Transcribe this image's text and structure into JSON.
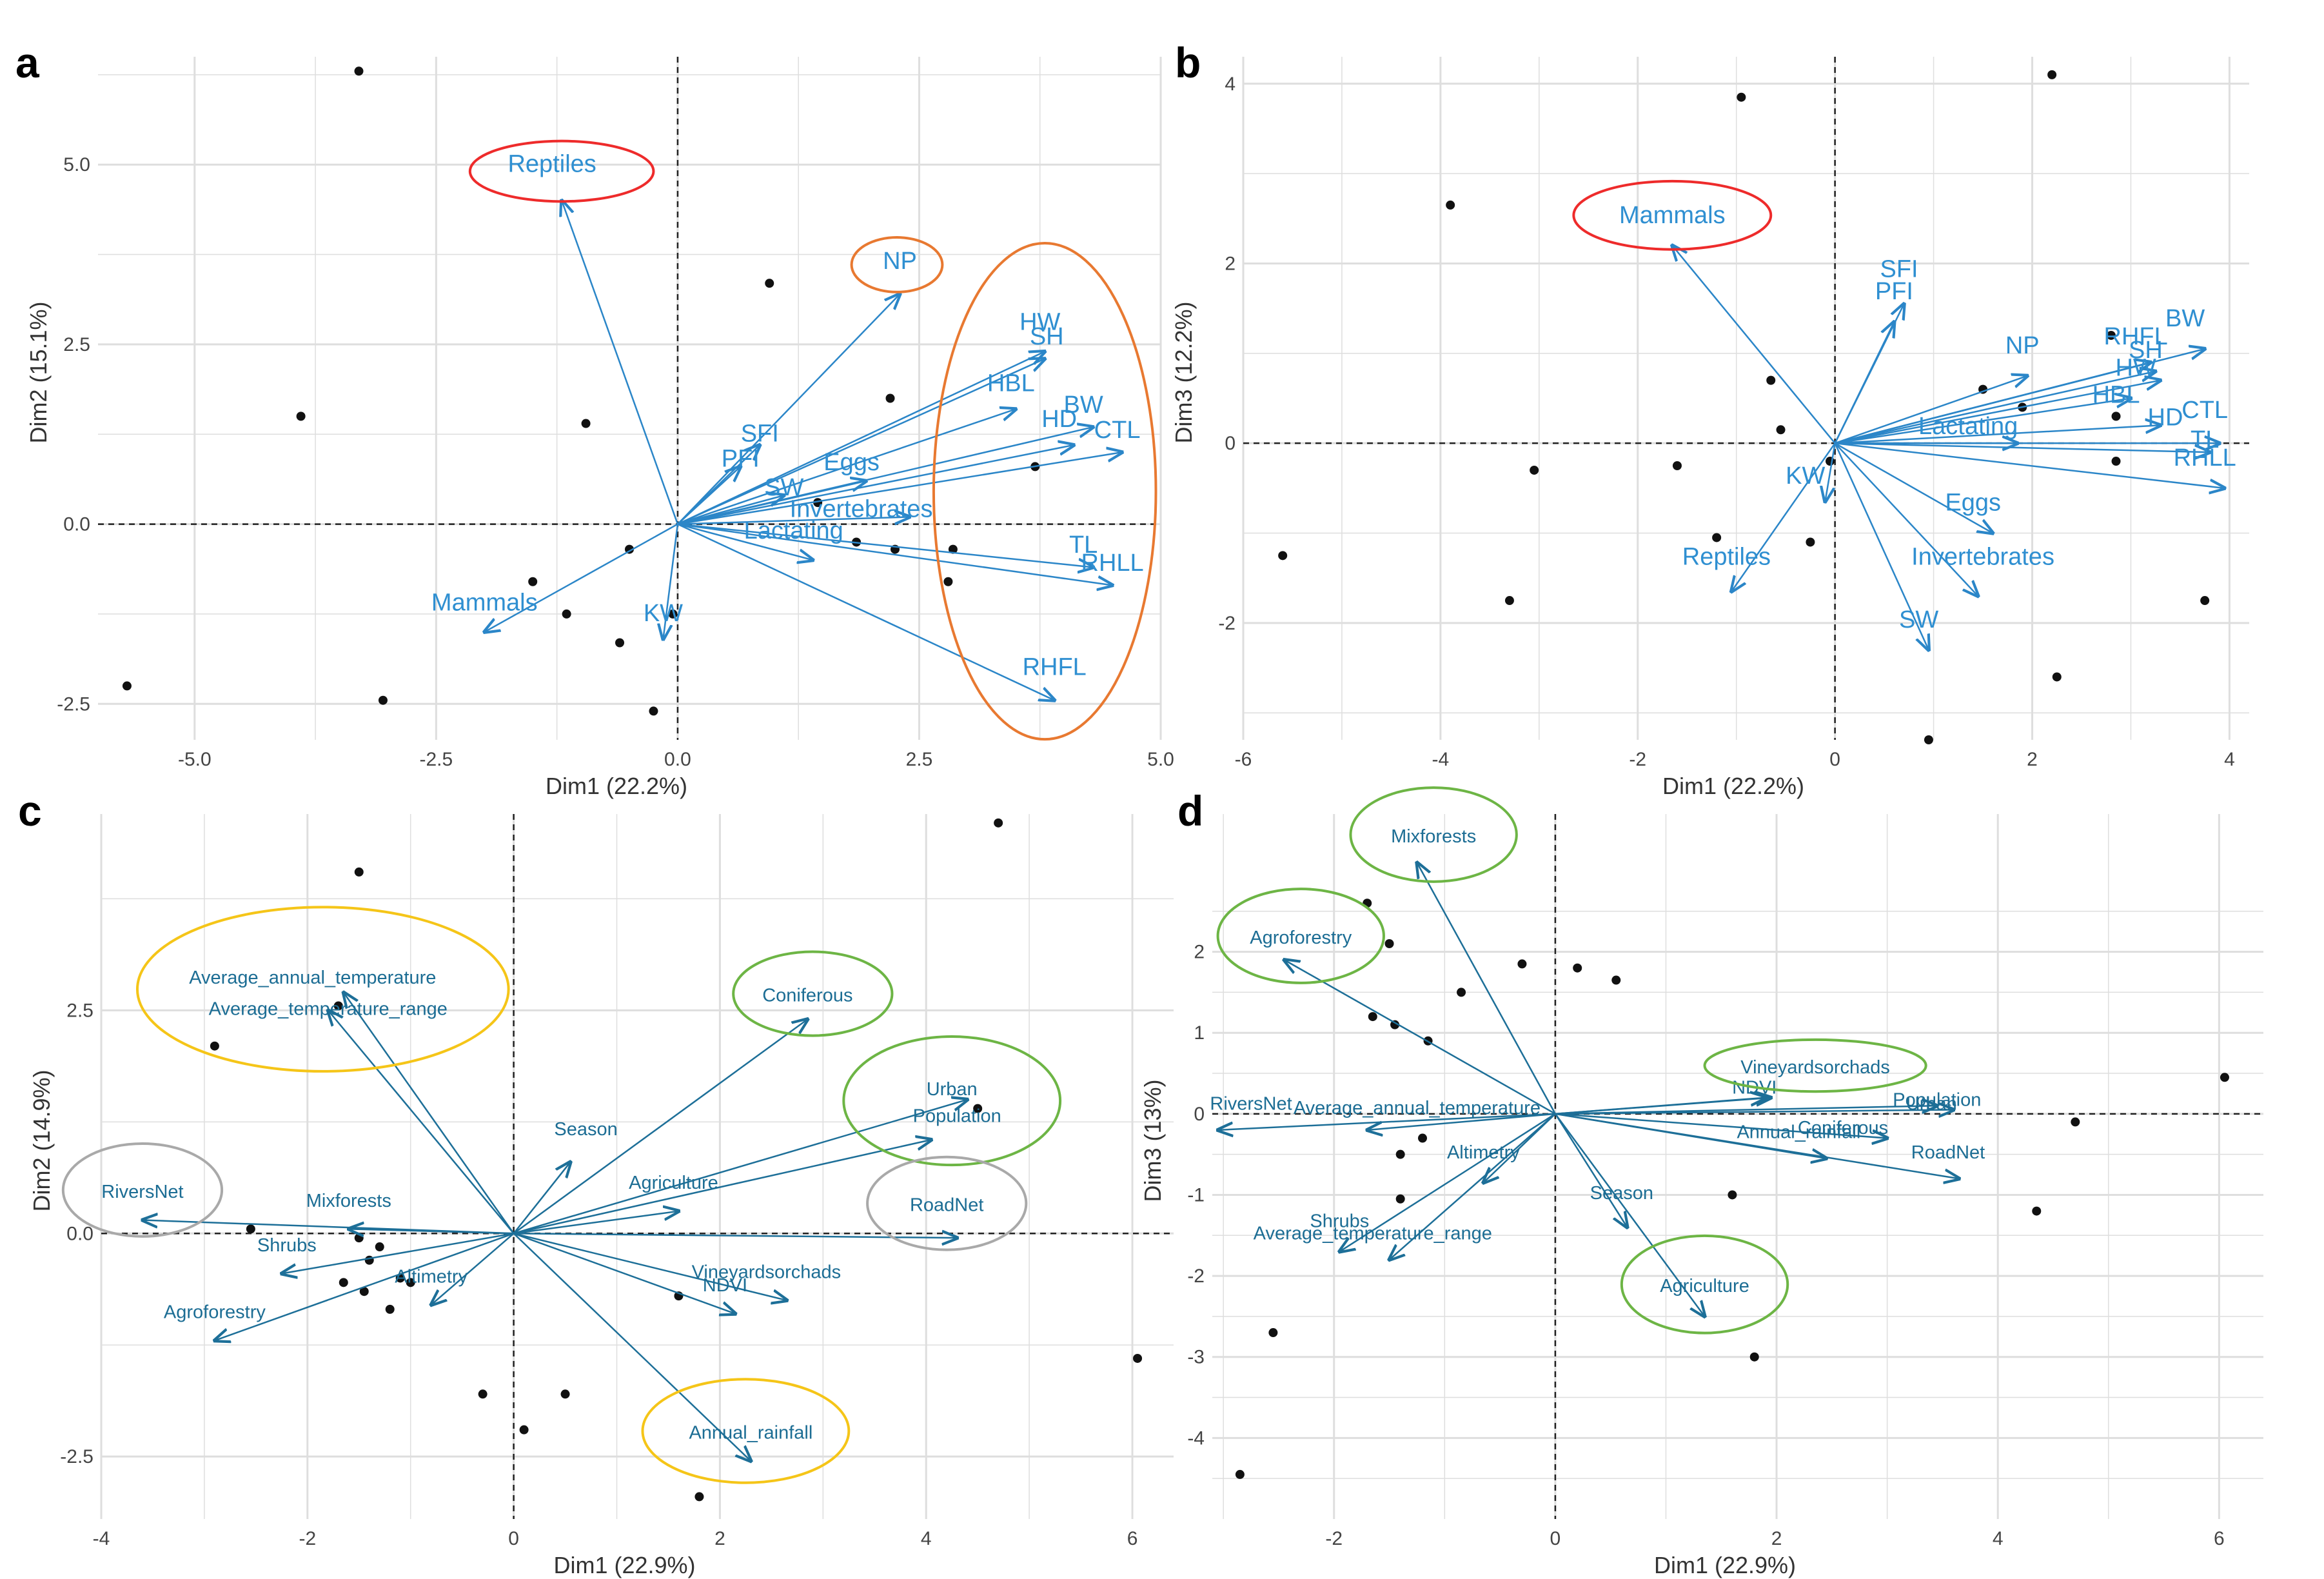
{
  "figure_title": "",
  "colors": {
    "arrow_ab": "#2b86c8",
    "arrow_cd": "#1d6f98",
    "label_ab": "#2f8fd1",
    "label_cd": "#1c6d94",
    "grid": "#dedede",
    "point": "#111111",
    "red_ellipse": "#ee2b2b",
    "orange_ellipse": "#e87931",
    "green_ellipse": "#6db545",
    "yellow_ellipse": "#f5c518",
    "gray_ellipse": "#a9a9a9"
  },
  "chart_data": [
    {
      "panel": "a",
      "type": "scatter",
      "subtype": "pca-biplot",
      "xlabel": "Dim1 (22.2%)",
      "ylabel": "Dim2 (15.1%)",
      "xlim": [
        -6.0,
        5.0
      ],
      "ylim": [
        -3.0,
        6.5
      ],
      "xticks": [
        -5.0,
        -2.5,
        0.0,
        2.5,
        5.0
      ],
      "xtick_labels": [
        "-5.0",
        "-2.5",
        "0.0",
        "2.5",
        "5.0"
      ],
      "yticks": [
        -2.5,
        0.0,
        2.5,
        5.0
      ],
      "ytick_labels": [
        "-2.5",
        "0.0",
        "2.5",
        "5.0"
      ],
      "grid": true,
      "points": [
        {
          "x": -3.3,
          "y": 6.3
        },
        {
          "x": -3.9,
          "y": 1.5
        },
        {
          "x": -5.7,
          "y": -2.25
        },
        {
          "x": -3.05,
          "y": -2.45
        },
        {
          "x": -1.5,
          "y": -0.8
        },
        {
          "x": -1.15,
          "y": -1.25
        },
        {
          "x": -0.95,
          "y": 1.4
        },
        {
          "x": -0.6,
          "y": -1.65
        },
        {
          "x": -0.5,
          "y": -0.35
        },
        {
          "x": -0.25,
          "y": -2.6
        },
        {
          "x": -0.05,
          "y": -1.25
        },
        {
          "x": 0.95,
          "y": 3.35
        },
        {
          "x": 1.45,
          "y": 0.3
        },
        {
          "x": 1.85,
          "y": -0.25
        },
        {
          "x": 2.2,
          "y": 1.75
        },
        {
          "x": 2.25,
          "y": -0.35
        },
        {
          "x": 2.8,
          "y": -0.8
        },
        {
          "x": 2.85,
          "y": -0.35
        },
        {
          "x": 3.7,
          "y": 0.8
        }
      ],
      "vectors": [
        {
          "label": "Reptiles",
          "x": -1.2,
          "y": 4.5,
          "lx": -1.3,
          "ly": 4.9
        },
        {
          "label": "NP",
          "x": 2.3,
          "y": 3.2,
          "lx": 2.3,
          "ly": 3.55
        },
        {
          "label": "HW",
          "x": 3.8,
          "y": 2.4,
          "lx": 3.75,
          "ly": 2.7
        },
        {
          "label": "SH",
          "x": 3.8,
          "y": 2.3,
          "lx": 3.82,
          "ly": 2.5
        },
        {
          "label": "HBL",
          "x": 3.5,
          "y": 1.6,
          "lx": 3.45,
          "ly": 1.85
        },
        {
          "label": "BW",
          "x": 4.3,
          "y": 1.35,
          "lx": 4.2,
          "ly": 1.55
        },
        {
          "label": "HD",
          "x": 4.1,
          "y": 1.1,
          "lx": 3.95,
          "ly": 1.35
        },
        {
          "label": "CTL",
          "x": 4.6,
          "y": 1.0,
          "lx": 4.55,
          "ly": 1.2
        },
        {
          "label": "SFI",
          "x": 0.85,
          "y": 1.1,
          "lx": 0.85,
          "ly": 1.15
        },
        {
          "label": "PFI",
          "x": 0.65,
          "y": 0.8,
          "lx": 0.65,
          "ly": 0.8
        },
        {
          "label": "Eggs",
          "x": 1.95,
          "y": 0.6,
          "lx": 1.8,
          "ly": 0.75
        },
        {
          "label": "SW",
          "x": 1.1,
          "y": 0.4,
          "lx": 1.1,
          "ly": 0.4
        },
        {
          "label": "Invertebrates",
          "x": 2.4,
          "y": 0.1,
          "lx": 1.9,
          "ly": 0.1
        },
        {
          "label": "Lactating",
          "x": 1.4,
          "y": -0.5,
          "lx": 1.2,
          "ly": -0.2
        },
        {
          "label": "TL",
          "x": 4.3,
          "y": -0.6,
          "lx": 4.2,
          "ly": -0.4
        },
        {
          "label": "RHLL",
          "x": 4.5,
          "y": -0.85,
          "lx": 4.5,
          "ly": -0.65
        },
        {
          "label": "RHFL",
          "x": 3.9,
          "y": -2.45,
          "lx": 3.9,
          "ly": -2.1
        },
        {
          "label": "Mammals",
          "x": -2.0,
          "y": -1.5,
          "lx": -2.0,
          "ly": -1.2
        },
        {
          "label": "KW",
          "x": -0.15,
          "y": -1.6,
          "lx": -0.15,
          "ly": -1.35
        }
      ],
      "ellipses": [
        {
          "color": "red",
          "cx": -1.2,
          "cy": 4.8,
          "rx": 0.95,
          "ry": 0.42
        },
        {
          "color": "orange",
          "cx": 2.27,
          "cy": 3.5,
          "rx": 0.47,
          "ry": 0.38
        },
        {
          "color": "orange",
          "cx": 3.8,
          "cy": 0.35,
          "rx": 1.15,
          "ry": 3.45
        }
      ]
    },
    {
      "panel": "b",
      "type": "scatter",
      "subtype": "pca-biplot",
      "xlabel": "Dim1 (22.2%)",
      "ylabel": "Dim3 (12.2%)",
      "xlim": [
        -6.0,
        4.2
      ],
      "ylim": [
        -3.3,
        4.3
      ],
      "xticks": [
        -6,
        -4,
        -2,
        0,
        2,
        4
      ],
      "xtick_labels": [
        "-6",
        "-4",
        "-2",
        "0",
        "2",
        "4"
      ],
      "yticks": [
        -2,
        0,
        2,
        4
      ],
      "ytick_labels": [
        "-2",
        "0",
        "2",
        "4"
      ],
      "grid": true,
      "points": [
        {
          "x": -0.95,
          "y": 3.85
        },
        {
          "x": -3.9,
          "y": 2.65
        },
        {
          "x": -5.6,
          "y": -1.25
        },
        {
          "x": -3.3,
          "y": -1.75
        },
        {
          "x": -3.05,
          "y": -0.3
        },
        {
          "x": -1.6,
          "y": -0.25
        },
        {
          "x": -1.2,
          "y": -1.05
        },
        {
          "x": -0.65,
          "y": 0.7
        },
        {
          "x": -0.55,
          "y": 0.15
        },
        {
          "x": -0.25,
          "y": -1.1
        },
        {
          "x": -0.05,
          "y": -0.2
        },
        {
          "x": 0.95,
          "y": -3.3
        },
        {
          "x": 1.5,
          "y": 0.6
        },
        {
          "x": 1.9,
          "y": 0.4
        },
        {
          "x": 2.2,
          "y": 4.1
        },
        {
          "x": 2.25,
          "y": -2.6
        },
        {
          "x": 2.8,
          "y": 1.2
        },
        {
          "x": 2.85,
          "y": 0.3
        },
        {
          "x": 2.85,
          "y": -0.2
        },
        {
          "x": 3.75,
          "y": -1.75
        }
      ],
      "vectors": [
        {
          "label": "Mammals",
          "x": -1.65,
          "y": 2.2,
          "lx": -1.65,
          "ly": 2.45
        },
        {
          "label": "SFI",
          "x": 0.7,
          "y": 1.55,
          "lx": 0.65,
          "ly": 1.85
        },
        {
          "label": "PFI",
          "x": 0.6,
          "y": 1.35,
          "lx": 0.6,
          "ly": 1.6
        },
        {
          "label": "NP",
          "x": 1.95,
          "y": 0.75,
          "lx": 1.9,
          "ly": 1.0
        },
        {
          "label": "RHFL",
          "x": 3.2,
          "y": 0.9,
          "lx": 3.05,
          "ly": 1.1
        },
        {
          "label": "BW",
          "x": 3.75,
          "y": 1.05,
          "lx": 3.55,
          "ly": 1.3
        },
        {
          "label": "SH",
          "x": 3.25,
          "y": 0.8,
          "lx": 3.15,
          "ly": 0.95
        },
        {
          "label": "HW",
          "x": 3.3,
          "y": 0.7,
          "lx": 3.05,
          "ly": 0.75
        },
        {
          "label": "HBL",
          "x": 3.0,
          "y": 0.5,
          "lx": 2.85,
          "ly": 0.45
        },
        {
          "label": "HD",
          "x": 3.3,
          "y": 0.2,
          "lx": 3.35,
          "ly": 0.2
        },
        {
          "label": "CTL",
          "x": 3.9,
          "y": 0.0,
          "lx": 3.75,
          "ly": 0.28
        },
        {
          "label": "TL",
          "x": 3.8,
          "y": -0.1,
          "lx": 3.75,
          "ly": -0.05
        },
        {
          "label": "RHLL",
          "x": 3.95,
          "y": -0.5,
          "lx": 3.75,
          "ly": -0.25
        },
        {
          "label": "Lactating",
          "x": 1.85,
          "y": 0.0,
          "lx": 1.35,
          "ly": 0.1
        },
        {
          "label": "Eggs",
          "x": 1.6,
          "y": -1.0,
          "lx": 1.4,
          "ly": -0.75
        },
        {
          "label": "Invertebrates",
          "x": 1.45,
          "y": -1.7,
          "lx": 1.5,
          "ly": -1.35
        },
        {
          "label": "SW",
          "x": 0.95,
          "y": -2.3,
          "lx": 0.85,
          "ly": -2.05
        },
        {
          "label": "Reptiles",
          "x": -1.05,
          "y": -1.65,
          "lx": -1.1,
          "ly": -1.35
        },
        {
          "label": "KW",
          "x": -0.1,
          "y": -0.65,
          "lx": -0.3,
          "ly": -0.45
        }
      ],
      "ellipses": [
        {
          "color": "red",
          "cx": -1.65,
          "cy": 2.45,
          "rx": 1.0,
          "ry": 0.38
        }
      ]
    },
    {
      "panel": "c",
      "type": "scatter",
      "subtype": "pca-biplot",
      "xlabel": "Dim1 (22.9%)",
      "ylabel": "Dim2 (14.9%)",
      "xlim": [
        -4.0,
        6.4
      ],
      "ylim": [
        -3.2,
        4.7
      ],
      "xticks": [
        -4,
        -2,
        0,
        2,
        4,
        6
      ],
      "xtick_labels": [
        "-4",
        "-2",
        "0",
        "2",
        "4",
        "6"
      ],
      "yticks": [
        -2.5,
        0.0,
        2.5
      ],
      "ytick_labels": [
        "-2.5",
        "0.0",
        "2.5"
      ],
      "grid": true,
      "points": [
        {
          "x": -1.5,
          "y": 4.05
        },
        {
          "x": -1.7,
          "y": 2.55
        },
        {
          "x": -2.9,
          "y": 2.1
        },
        {
          "x": -2.55,
          "y": 0.05
        },
        {
          "x": -1.5,
          "y": -0.05
        },
        {
          "x": -1.3,
          "y": -0.15
        },
        {
          "x": -1.4,
          "y": -0.3
        },
        {
          "x": -1.1,
          "y": -0.5
        },
        {
          "x": -1.0,
          "y": -0.55
        },
        {
          "x": -1.65,
          "y": -0.55
        },
        {
          "x": -1.45,
          "y": -0.65
        },
        {
          "x": -1.2,
          "y": -0.85
        },
        {
          "x": -0.3,
          "y": -1.8
        },
        {
          "x": 0.1,
          "y": -2.2
        },
        {
          "x": 0.5,
          "y": -1.8
        },
        {
          "x": 1.6,
          "y": -0.7
        },
        {
          "x": 1.8,
          "y": -2.95
        },
        {
          "x": 4.5,
          "y": 1.4
        },
        {
          "x": 4.7,
          "y": 4.6
        },
        {
          "x": 6.05,
          "y": -1.4
        }
      ],
      "vectors": [
        {
          "label": "Average_annual_temperature",
          "x": -1.65,
          "y": 2.7,
          "lx": -1.95,
          "ly": 2.8
        },
        {
          "label": "Average_temperature_range",
          "x": -1.8,
          "y": 2.5,
          "lx": -1.8,
          "ly": 2.45
        },
        {
          "label": "Coniferous",
          "x": 2.85,
          "y": 2.4,
          "lx": 2.85,
          "ly": 2.6
        },
        {
          "label": "Urban",
          "x": 4.4,
          "y": 1.5,
          "lx": 4.25,
          "ly": 1.55
        },
        {
          "label": "Population",
          "x": 4.05,
          "y": 1.05,
          "lx": 4.3,
          "ly": 1.25
        },
        {
          "label": "Season",
          "x": 0.55,
          "y": 0.8,
          "lx": 0.7,
          "ly": 1.1
        },
        {
          "label": "Agriculture",
          "x": 1.6,
          "y": 0.25,
          "lx": 1.55,
          "ly": 0.5
        },
        {
          "label": "RoadNet",
          "x": 4.3,
          "y": -0.05,
          "lx": 4.2,
          "ly": 0.25
        },
        {
          "label": "Vineyardsorchads",
          "x": 2.65,
          "y": -0.75,
          "lx": 2.45,
          "ly": -0.5
        },
        {
          "label": "NDVI",
          "x": 2.15,
          "y": -0.9,
          "lx": 2.05,
          "ly": -0.65
        },
        {
          "label": "Annual_rainfall",
          "x": 2.3,
          "y": -2.55,
          "lx": 2.3,
          "ly": -2.3
        },
        {
          "label": "RiversNet",
          "x": -3.6,
          "y": 0.15,
          "lx": -3.6,
          "ly": 0.4
        },
        {
          "label": "Mixforests",
          "x": -1.6,
          "y": 0.05,
          "lx": -1.6,
          "ly": 0.3
        },
        {
          "label": "Shrubs",
          "x": -2.25,
          "y": -0.45,
          "lx": -2.2,
          "ly": -0.2
        },
        {
          "label": "Altimetry",
          "x": -0.8,
          "y": -0.8,
          "lx": -0.8,
          "ly": -0.55
        },
        {
          "label": "Agroforestry",
          "x": -2.9,
          "y": -1.2,
          "lx": -2.9,
          "ly": -0.95
        }
      ],
      "ellipses": [
        {
          "color": "yellow",
          "cx": -1.85,
          "cy": 2.65,
          "rx": 1.8,
          "ry": 0.92
        },
        {
          "color": "green",
          "cx": 2.9,
          "cy": 2.6,
          "rx": 0.77,
          "ry": 0.47
        },
        {
          "color": "green",
          "cx": 4.25,
          "cy": 1.4,
          "rx": 1.05,
          "ry": 0.72
        },
        {
          "color": "gray",
          "cx": 4.2,
          "cy": 0.25,
          "rx": 0.77,
          "ry": 0.52
        },
        {
          "color": "gray",
          "cx": -3.6,
          "cy": 0.4,
          "rx": 0.77,
          "ry": 0.52
        },
        {
          "color": "yellow",
          "cx": 2.25,
          "cy": -2.3,
          "rx": 1.0,
          "ry": 0.58
        }
      ]
    },
    {
      "panel": "d",
      "type": "scatter",
      "subtype": "pca-biplot",
      "xlabel": "Dim1 (22.9%)",
      "ylabel": "Dim3 (13%)",
      "xlim": [
        -3.1,
        6.4
      ],
      "ylim": [
        -5.0,
        3.7
      ],
      "xticks": [
        -2,
        0,
        2,
        4,
        6
      ],
      "xtick_labels": [
        "-2",
        "0",
        "2",
        "4",
        "6"
      ],
      "yticks": [
        -4,
        -3,
        -2,
        -1,
        0,
        1,
        2
      ],
      "ytick_labels": [
        "-4",
        "-3",
        "-2",
        "-1",
        "0",
        "1",
        "2"
      ],
      "grid": true,
      "points": [
        {
          "x": -1.7,
          "y": 2.6
        },
        {
          "x": -1.5,
          "y": 2.1
        },
        {
          "x": -0.3,
          "y": 1.85
        },
        {
          "x": 0.2,
          "y": 1.8
        },
        {
          "x": 0.55,
          "y": 1.65
        },
        {
          "x": -0.85,
          "y": 1.5
        },
        {
          "x": -1.65,
          "y": 1.2
        },
        {
          "x": -1.45,
          "y": 1.1
        },
        {
          "x": -1.15,
          "y": 0.9
        },
        {
          "x": -1.2,
          "y": -0.3
        },
        {
          "x": -1.4,
          "y": -0.5
        },
        {
          "x": -1.4,
          "y": -1.05
        },
        {
          "x": -2.55,
          "y": -2.7
        },
        {
          "x": -2.85,
          "y": -4.45
        },
        {
          "x": 1.6,
          "y": -1.0
        },
        {
          "x": 1.8,
          "y": -3.0
        },
        {
          "x": 4.7,
          "y": -0.1
        },
        {
          "x": 4.35,
          "y": -1.2
        },
        {
          "x": 6.05,
          "y": 0.45
        }
      ],
      "vectors": [
        {
          "label": "Mixforests",
          "x": -1.25,
          "y": 3.1,
          "lx": -1.1,
          "ly": 3.35
        },
        {
          "label": "Agroforestry",
          "x": -2.45,
          "y": 1.9,
          "lx": -2.3,
          "ly": 2.1
        },
        {
          "label": "Vineyardsorchads",
          "x": 1.9,
          "y": 0.2,
          "lx": 2.35,
          "ly": 0.5
        },
        {
          "label": "NDVI",
          "x": 1.95,
          "y": 0.2,
          "lx": 1.8,
          "ly": 0.25
        },
        {
          "label": "Population",
          "x": 3.45,
          "y": 0.1,
          "lx": 3.45,
          "ly": 0.1
        },
        {
          "label": "Urban",
          "x": 3.6,
          "y": 0.05,
          "lx": 3.4,
          "ly": 0.05
        },
        {
          "label": "Coniferous",
          "x": 3.0,
          "y": -0.3,
          "lx": 2.6,
          "ly": -0.25
        },
        {
          "label": "Annual_rainfall",
          "x": 2.45,
          "y": -0.55,
          "lx": 2.2,
          "ly": -0.3
        },
        {
          "label": "RoadNet",
          "x": 3.65,
          "y": -0.8,
          "lx": 3.55,
          "ly": -0.55
        },
        {
          "label": "Season",
          "x": 0.65,
          "y": -1.4,
          "lx": 0.6,
          "ly": -1.05
        },
        {
          "label": "Agriculture",
          "x": 1.35,
          "y": -2.5,
          "lx": 1.35,
          "ly": -2.2
        },
        {
          "label": "RiversNet",
          "x": -3.05,
          "y": -0.2,
          "lx": -2.75,
          "ly": 0.05
        },
        {
          "label": "Average_annual_temperature",
          "x": -1.7,
          "y": -0.2,
          "lx": -1.25,
          "ly": 0.0
        },
        {
          "label": "Altimetry",
          "x": -0.65,
          "y": -0.85,
          "lx": -0.65,
          "ly": -0.55
        },
        {
          "label": "Shrubs",
          "x": -1.95,
          "y": -1.7,
          "lx": -1.95,
          "ly": -1.4
        },
        {
          "label": "Average_temperature_range",
          "x": -1.5,
          "y": -1.8,
          "lx": -1.65,
          "ly": -1.55
        }
      ],
      "ellipses": [
        {
          "color": "green",
          "cx": -1.1,
          "cy": 3.35,
          "rx": 0.75,
          "ry": 0.58
        },
        {
          "color": "green",
          "cx": -2.3,
          "cy": 2.1,
          "rx": 0.75,
          "ry": 0.58
        },
        {
          "color": "green",
          "cx": 2.35,
          "cy": 0.5,
          "rx": 1.0,
          "ry": 0.32
        },
        {
          "color": "green",
          "cx": 1.35,
          "cy": -2.2,
          "rx": 0.75,
          "ry": 0.6
        }
      ]
    }
  ]
}
